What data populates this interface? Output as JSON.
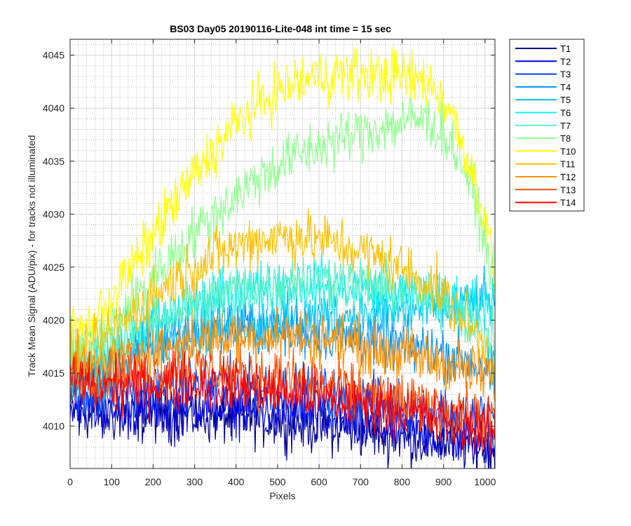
{
  "chart_data": {
    "type": "line",
    "title": "BS03 Day05 20190116-Lite-048 int time = 15 sec",
    "xlabel": "Pixels",
    "ylabel": "Track Mean Signal (ADU/pix) - for tracks not illuminated",
    "xlim": [
      0,
      1024
    ],
    "ylim": [
      4006,
      4046.5
    ],
    "xticks": [
      0,
      100,
      200,
      300,
      400,
      500,
      600,
      700,
      800,
      900,
      1000
    ],
    "yticks": [
      4010,
      4015,
      4020,
      4025,
      4030,
      4035,
      4040,
      4045
    ],
    "xtick_labels": [
      "0",
      "100",
      "200",
      "300",
      "400",
      "500",
      "600",
      "700",
      "800",
      "900",
      "1000"
    ],
    "ytick_labels": [
      "4010",
      "4015",
      "4020",
      "4025",
      "4030",
      "4035",
      "4040",
      "4045"
    ],
    "grid": "major solid, minor dotted",
    "legend_position": "outside-right-top",
    "x": [
      0,
      50,
      100,
      150,
      200,
      250,
      300,
      350,
      400,
      450,
      500,
      550,
      600,
      650,
      700,
      750,
      800,
      850,
      900,
      950,
      1000,
      1024
    ],
    "series": [
      {
        "name": "T1",
        "color": "#00008f",
        "noise": 1.6,
        "values": [
          4011.5,
          4011.2,
          4011.0,
          4011.0,
          4011.0,
          4011.0,
          4011.0,
          4010.9,
          4010.8,
          4010.6,
          4010.5,
          4010.3,
          4010.0,
          4009.8,
          4009.6,
          4009.3,
          4009.0,
          4008.7,
          4008.5,
          4008.3,
          4008.1,
          4008.0
        ]
      },
      {
        "name": "T2",
        "color": "#0000e0",
        "noise": 1.6,
        "values": [
          4012.0,
          4011.6,
          4011.4,
          4011.5,
          4011.7,
          4011.8,
          4011.9,
          4011.8,
          4011.7,
          4011.5,
          4011.3,
          4011.0,
          4010.7,
          4010.4,
          4010.1,
          4009.8,
          4009.5,
          4009.2,
          4009.0,
          4008.8,
          4008.6,
          4008.5
        ]
      },
      {
        "name": "T3",
        "color": "#0040ff",
        "noise": 1.6,
        "values": [
          4013.0,
          4012.8,
          4012.9,
          4013.2,
          4013.5,
          4013.8,
          4014.0,
          4014.0,
          4013.9,
          4013.8,
          4013.6,
          4013.3,
          4013.0,
          4012.7,
          4012.4,
          4012.1,
          4011.8,
          4011.5,
          4011.2,
          4011.0,
          4010.8,
          4010.6
        ]
      },
      {
        "name": "T4",
        "color": "#0090ff",
        "noise": 1.6,
        "values": [
          4014.0,
          4014.2,
          4015.2,
          4016.5,
          4017.8,
          4018.6,
          4019.1,
          4019.3,
          4019.4,
          4019.3,
          4019.2,
          4019.0,
          4018.8,
          4018.5,
          4018.2,
          4017.9,
          4017.6,
          4017.3,
          4016.9,
          4016.3,
          4015.3,
          4014.5
        ]
      },
      {
        "name": "T5",
        "color": "#00c0ff",
        "noise": 1.6,
        "values": [
          4014.5,
          4014.8,
          4015.8,
          4017.0,
          4018.0,
          4018.6,
          4019.0,
          4019.3,
          4019.6,
          4019.8,
          4020.0,
          4020.2,
          4020.3,
          4020.4,
          4020.5,
          4020.6,
          4020.8,
          4021.0,
          4021.2,
          4021.5,
          4021.8,
          4022.0
        ]
      },
      {
        "name": "T6",
        "color": "#10f0f0",
        "noise": 1.6,
        "values": [
          4015.5,
          4016.0,
          4017.2,
          4018.5,
          4019.5,
          4020.5,
          4021.3,
          4022.0,
          4022.6,
          4023.0,
          4023.3,
          4023.4,
          4023.3,
          4023.1,
          4022.8,
          4022.5,
          4022.2,
          4022.0,
          4021.8,
          4021.7,
          4021.8,
          4022.0
        ]
      },
      {
        "name": "T7",
        "color": "#60f0c0",
        "noise": 1.6,
        "values": [
          4016.0,
          4016.4,
          4017.5,
          4018.8,
          4019.8,
          4020.8,
          4021.6,
          4022.3,
          4022.9,
          4023.3,
          4023.6,
          4023.8,
          4023.8,
          4023.7,
          4023.5,
          4023.2,
          4022.8,
          4022.3,
          4021.6,
          4020.5,
          4018.8,
          4017.5
        ]
      },
      {
        "name": "T8",
        "color": "#90ff90",
        "noise": 1.6,
        "values": [
          4017.0,
          4017.5,
          4019.5,
          4021.8,
          4024.0,
          4026.2,
          4028.2,
          4030.0,
          4031.8,
          4033.3,
          4034.6,
          4035.6,
          4036.4,
          4037.1,
          4037.7,
          4038.2,
          4038.7,
          4039.0,
          4037.8,
          4034.5,
          4028.0,
          4023.0
        ]
      },
      {
        "name": "T10",
        "color": "#ffff00",
        "noise": 1.6,
        "values": [
          4019.0,
          4019.5,
          4022.0,
          4025.0,
          4028.0,
          4031.0,
          4033.7,
          4036.2,
          4038.5,
          4040.3,
          4041.7,
          4042.5,
          4043.0,
          4043.2,
          4043.2,
          4043.1,
          4043.0,
          4042.7,
          4041.0,
          4036.5,
          4029.5,
          4024.0
        ]
      },
      {
        "name": "T11",
        "color": "#ffc000",
        "noise": 1.6,
        "values": [
          4016.5,
          4017.0,
          4018.8,
          4020.7,
          4022.3,
          4023.8,
          4025.0,
          4026.1,
          4027.0,
          4027.6,
          4027.9,
          4027.9,
          4027.6,
          4027.1,
          4026.5,
          4025.8,
          4024.9,
          4023.8,
          4022.3,
          4020.2,
          4017.5,
          4015.5
        ]
      },
      {
        "name": "T12",
        "color": "#ff9000",
        "noise": 1.6,
        "values": [
          4015.5,
          4015.5,
          4015.9,
          4016.5,
          4017.1,
          4017.6,
          4018.0,
          4018.3,
          4018.5,
          4018.6,
          4018.6,
          4018.5,
          4018.3,
          4018.0,
          4017.6,
          4017.2,
          4016.8,
          4016.4,
          4015.9,
          4015.4,
          4014.8,
          4014.4
        ]
      },
      {
        "name": "T13",
        "color": "#ff5000",
        "noise": 1.6,
        "values": [
          4015.0,
          4014.8,
          4014.8,
          4015.0,
          4015.2,
          4015.3,
          4015.3,
          4015.2,
          4015.0,
          4014.8,
          4014.5,
          4014.2,
          4013.9,
          4013.5,
          4013.1,
          4012.7,
          4012.3,
          4011.9,
          4011.5,
          4011.1,
          4010.7,
          4010.5
        ]
      },
      {
        "name": "T14",
        "color": "#ff0000",
        "noise": 1.6,
        "values": [
          4014.5,
          4014.0,
          4013.8,
          4013.8,
          4013.9,
          4014.0,
          4014.0,
          4013.9,
          4013.7,
          4013.5,
          4013.3,
          4013.0,
          4012.7,
          4012.4,
          4012.1,
          4011.8,
          4011.4,
          4011.0,
          4010.6,
          4010.2,
          4009.8,
          4009.5
        ]
      }
    ]
  }
}
